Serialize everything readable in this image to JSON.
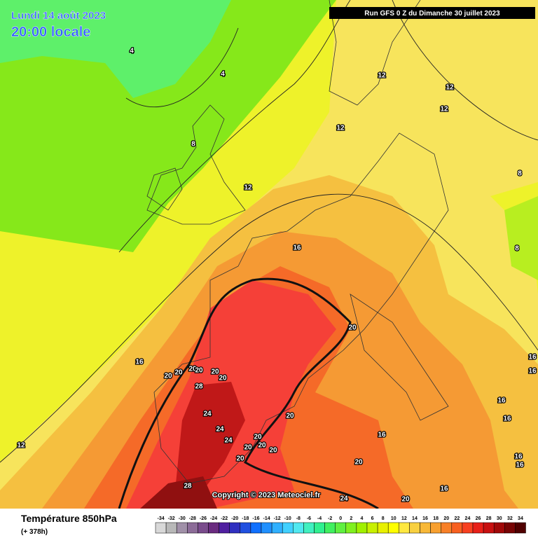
{
  "header": {
    "date": "Lundi 14 août 2023",
    "time": "20:00 locale",
    "run": "Run GFS 0 Z du Dimanche 30 juillet 2023"
  },
  "map": {
    "contour_labels": [
      4,
      4,
      8,
      12,
      12,
      12,
      12,
      12,
      8,
      8,
      16,
      20,
      16,
      20,
      20,
      20,
      20,
      20,
      20,
      28,
      24,
      24,
      24,
      20,
      20,
      20,
      20,
      20,
      20,
      16,
      16,
      16,
      16,
      16,
      16,
      20,
      20,
      24,
      28,
      12,
      16,
      16
    ],
    "copyright": "Copyright © 2023 Meteociel.fr"
  },
  "legend": {
    "title": "Température 850hPa",
    "lead": "(+ 378h)",
    "scale": {
      "ticks": [
        -34,
        -32,
        -30,
        -28,
        -26,
        -24,
        -22,
        -20,
        -18,
        -16,
        -14,
        -12,
        -10,
        -8,
        -6,
        -4,
        -2,
        0,
        2,
        4,
        6,
        8,
        10,
        12,
        14,
        16,
        18,
        20,
        22,
        24,
        26,
        28,
        30,
        32,
        34
      ],
      "colors": [
        "#d8d8d8",
        "#b8b8b8",
        "#a090a8",
        "#8c6c98",
        "#7a4c8c",
        "#6a2c80",
        "#5020a0",
        "#3030c0",
        "#2050e0",
        "#1070ff",
        "#2090ff",
        "#30b0ff",
        "#40d0ff",
        "#50e8f0",
        "#40f0c0",
        "#30f090",
        "#40f060",
        "#60f040",
        "#80f020",
        "#a0f000",
        "#c8f000",
        "#e8f000",
        "#ffff00",
        "#ffe840",
        "#f8d040",
        "#f8b838",
        "#f8a030",
        "#f88028",
        "#f86020",
        "#f84020",
        "#e82018",
        "#c81010",
        "#a00808",
        "#780404",
        "#500000"
      ]
    }
  }
}
